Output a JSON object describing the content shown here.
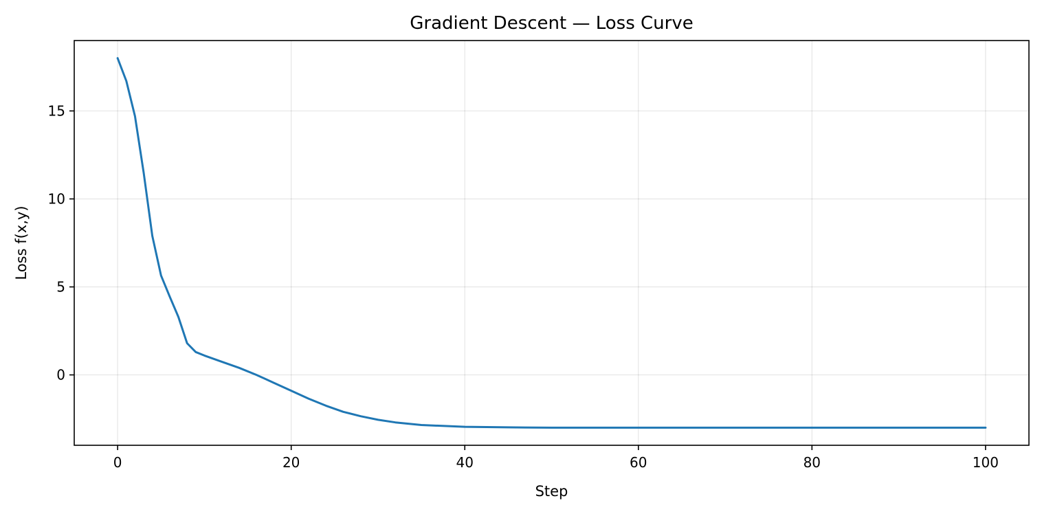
{
  "chart_data": {
    "type": "line",
    "title": "Gradient Descent — Loss Curve",
    "xlabel": "Step",
    "ylabel": "Loss f(x,y)",
    "xlim": [
      -5,
      105
    ],
    "ylim": [
      -4.0,
      19.0
    ],
    "xticks": [
      0,
      20,
      40,
      60,
      80,
      100
    ],
    "yticks": [
      0,
      5,
      10,
      15
    ],
    "grid": true,
    "legend": "none",
    "series": [
      {
        "color": "#1f77b4",
        "x": [
          0,
          1,
          2,
          3,
          4,
          5,
          6,
          7,
          8,
          9,
          10,
          12,
          14,
          16,
          18,
          20,
          22,
          24,
          26,
          28,
          30,
          32,
          35,
          40,
          45,
          50,
          60,
          70,
          80,
          90,
          100
        ],
        "y": [
          18.0,
          16.7,
          14.7,
          11.5,
          7.9,
          5.65,
          4.45,
          3.3,
          1.8,
          1.3,
          1.1,
          0.75,
          0.4,
          0.0,
          -0.45,
          -0.9,
          -1.35,
          -1.75,
          -2.1,
          -2.35,
          -2.55,
          -2.7,
          -2.85,
          -2.95,
          -2.98,
          -3.0,
          -3.0,
          -3.0,
          -3.0,
          -3.0,
          -3.0
        ]
      }
    ]
  }
}
